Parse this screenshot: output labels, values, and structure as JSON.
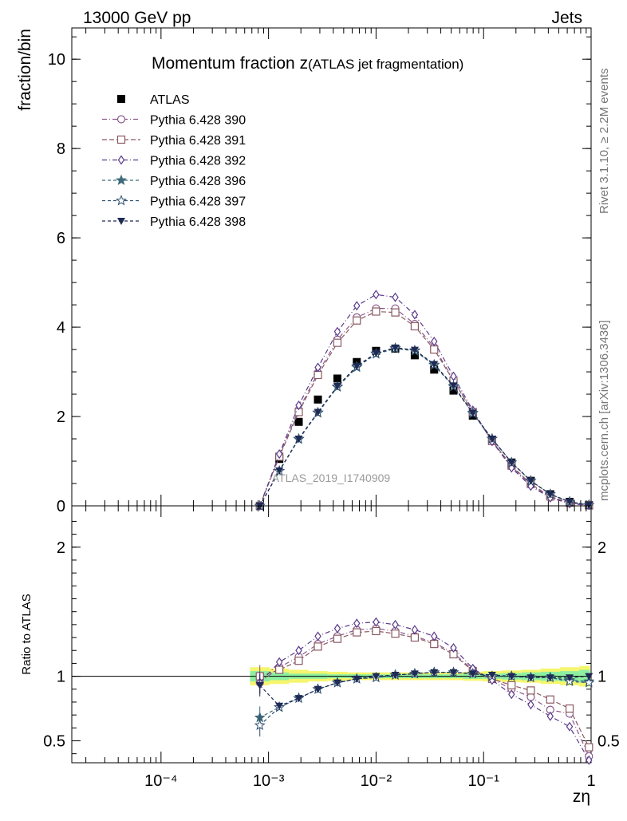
{
  "header": {
    "energy_label": "13000 GeV pp",
    "process_label": "Jets",
    "rivet_label": "Rivet 3.1.10, ≥ 2.2M events",
    "source_label": "mcplots.cern.ch [arXiv:1306.3436]",
    "analysis_label": "ATLAS_2019_I1740909"
  },
  "chart_data": [
    {
      "type": "scatter",
      "panel": "main",
      "title": "Momentum fraction z",
      "title_sub": "(ATLAS jet fragmentation)",
      "ylabel": "fraction/bin",
      "xscale": "log",
      "xlim": [
        1.48e-05,
        1
      ],
      "ylim": [
        0,
        10.7
      ],
      "yticks": [
        0,
        2,
        4,
        6,
        8,
        10
      ],
      "x": [
        0.00083,
        0.00126,
        0.00191,
        0.00288,
        0.00437,
        0.00662,
        0.01,
        0.0151,
        0.0229,
        0.0347,
        0.0525,
        0.0794,
        0.12,
        0.182,
        0.275,
        0.417,
        0.631,
        0.955
      ],
      "legend_position": "top-left",
      "series": [
        {
          "name": "ATLAS",
          "color": "#000000",
          "marker": "square-filled",
          "values": [
            null,
            1.05,
            1.88,
            2.38,
            2.85,
            3.22,
            3.47,
            3.52,
            3.37,
            3.05,
            2.58,
            2.02,
            1.48,
            0.97,
            0.56,
            0.26,
            0.09,
            0.02
          ]
        },
        {
          "name": "Pythia 6.428 390",
          "color": "#8b5a8b",
          "marker": "circle-open",
          "values": [
            0.0,
            1.12,
            2.15,
            2.98,
            3.72,
            4.22,
            4.42,
            4.42,
            4.07,
            3.55,
            2.82,
            2.11,
            1.45,
            0.88,
            0.47,
            0.19,
            0.06,
            0.01
          ]
        },
        {
          "name": "Pythia 6.428 391",
          "color": "#8a5a62",
          "marker": "square-open",
          "values": [
            0.0,
            1.1,
            2.1,
            2.93,
            3.65,
            4.15,
            4.35,
            4.33,
            4.02,
            3.5,
            2.8,
            2.1,
            1.45,
            0.9,
            0.49,
            0.21,
            0.07,
            0.01
          ]
        },
        {
          "name": "Pythia 6.428 392",
          "color": "#5a3a8a",
          "marker": "diamond-open",
          "values": [
            0.0,
            1.16,
            2.25,
            3.1,
            3.9,
            4.48,
            4.73,
            4.67,
            4.28,
            3.68,
            2.9,
            2.14,
            1.44,
            0.85,
            0.44,
            0.18,
            0.05,
            0.01
          ]
        },
        {
          "name": "Pythia 6.428 396",
          "color": "#3f6a7a",
          "marker": "star-filled",
          "values": [
            0.0,
            0.78,
            1.49,
            2.08,
            2.66,
            3.1,
            3.4,
            3.52,
            3.47,
            3.15,
            2.67,
            2.07,
            1.5,
            0.97,
            0.56,
            0.26,
            0.09,
            0.02
          ]
        },
        {
          "name": "Pythia 6.428 397",
          "color": "#2f4f6f",
          "marker": "star-open",
          "values": [
            0.0,
            0.78,
            1.5,
            2.09,
            2.67,
            3.12,
            3.41,
            3.53,
            3.48,
            3.16,
            2.68,
            2.08,
            1.5,
            0.97,
            0.56,
            0.26,
            0.09,
            0.02
          ]
        },
        {
          "name": "Pythia 6.428 398",
          "color": "#1f2a55",
          "marker": "triangle-down-filled",
          "values": [
            0.0,
            0.79,
            1.5,
            2.1,
            2.68,
            3.13,
            3.42,
            3.54,
            3.49,
            3.17,
            2.69,
            2.08,
            1.5,
            0.97,
            0.56,
            0.26,
            0.09,
            0.02
          ]
        }
      ]
    },
    {
      "type": "line",
      "panel": "ratio",
      "ylabel": "Ratio to ATLAS",
      "xlabel": "zη",
      "xscale": "log",
      "xlim": [
        1.48e-05,
        1
      ],
      "ylim": [
        0.33,
        2.32
      ],
      "yticks": [
        0.5,
        1,
        2
      ],
      "xtick_labels": [
        "10⁻⁴",
        "10⁻³",
        "10⁻²",
        "10⁻¹",
        "1"
      ],
      "x": [
        0.00083,
        0.00126,
        0.00191,
        0.00288,
        0.00437,
        0.00662,
        0.01,
        0.0151,
        0.0229,
        0.0347,
        0.0525,
        0.0794,
        0.12,
        0.182,
        0.275,
        0.417,
        0.631,
        0.955
      ],
      "reference_line": 1,
      "uncertainty_band": {
        "inner_color": "#8df0a0",
        "outer_color": "#f5f56e",
        "inner_halfwidth": [
          0.04,
          0.03,
          0.02,
          0.02,
          0.015,
          0.015,
          0.015,
          0.015,
          0.015,
          0.015,
          0.015,
          0.02,
          0.02,
          0.025,
          0.03,
          0.035,
          0.04,
          0.05
        ],
        "outer_halfwidth": [
          0.07,
          0.06,
          0.05,
          0.04,
          0.035,
          0.03,
          0.03,
          0.03,
          0.03,
          0.03,
          0.03,
          0.035,
          0.04,
          0.045,
          0.05,
          0.06,
          0.07,
          0.08
        ]
      },
      "series": [
        {
          "name": "Pythia 6.428 390",
          "color": "#8b5a8b",
          "marker": "circle-open",
          "values": [
            0.95,
            1.07,
            1.15,
            1.25,
            1.31,
            1.36,
            1.37,
            1.35,
            1.31,
            1.26,
            1.18,
            1.05,
            0.98,
            0.9,
            0.84,
            0.74,
            0.71,
            0.38
          ]
        },
        {
          "name": "Pythia 6.428 391",
          "color": "#8a5a62",
          "marker": "square-open",
          "values": [
            1.0,
            1.05,
            1.12,
            1.23,
            1.29,
            1.34,
            1.35,
            1.33,
            1.3,
            1.25,
            1.17,
            1.04,
            0.98,
            0.93,
            0.89,
            0.82,
            0.75,
            0.45
          ]
        },
        {
          "name": "Pythia 6.428 392",
          "color": "#5a3a8a",
          "marker": "diamond-open",
          "values": [
            0.95,
            1.11,
            1.2,
            1.31,
            1.37,
            1.41,
            1.42,
            1.4,
            1.36,
            1.31,
            1.22,
            1.06,
            0.97,
            0.86,
            0.78,
            0.69,
            0.61,
            0.35
          ]
        },
        {
          "name": "Pythia 6.428 396",
          "color": "#3f6a7a",
          "marker": "star-filled",
          "values": [
            0.68,
            0.76,
            0.83,
            0.9,
            0.95,
            0.98,
            0.99,
            1.01,
            1.02,
            1.03,
            1.03,
            1.02,
            1.0,
            1.0,
            0.99,
            0.99,
            0.97,
            0.96
          ]
        },
        {
          "name": "Pythia 6.428 397",
          "color": "#2f4f6f",
          "marker": "star-open",
          "values": [
            0.62,
            0.76,
            0.83,
            0.9,
            0.95,
            0.98,
            0.99,
            1.01,
            1.02,
            1.03,
            1.03,
            1.02,
            1.0,
            1.0,
            0.99,
            0.99,
            0.96,
            0.95
          ]
        },
        {
          "name": "Pythia 6.428 398",
          "color": "#1f2a55",
          "marker": "triangle-down-filled",
          "values": [
            0.93,
            0.77,
            0.83,
            0.9,
            0.95,
            0.98,
            1.0,
            1.01,
            1.02,
            1.03,
            1.03,
            1.02,
            1.01,
            1.0,
            0.99,
            0.99,
            0.99,
            1.0
          ]
        }
      ]
    }
  ]
}
